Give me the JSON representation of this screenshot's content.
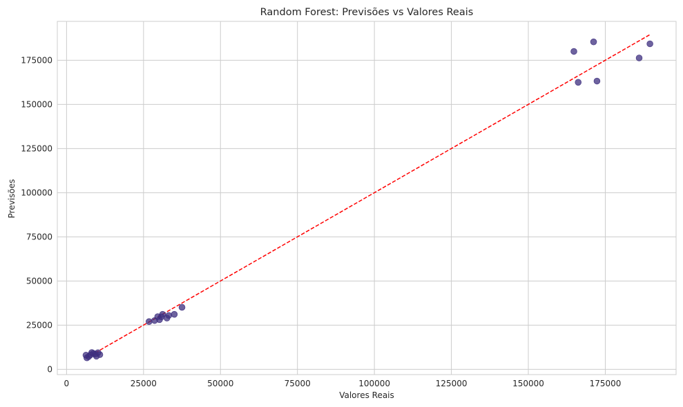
{
  "chart_data": {
    "type": "scatter",
    "title": "Random Forest: Previsões vs Valores Reais",
    "xlabel": "Valores Reais",
    "ylabel": "Previsões",
    "xlim": [
      -3000,
      198000
    ],
    "ylim": [
      -3000,
      197000
    ],
    "xticks": [
      0,
      25000,
      50000,
      75000,
      100000,
      125000,
      150000,
      175000
    ],
    "yticks": [
      0,
      25000,
      50000,
      75000,
      100000,
      125000,
      150000,
      175000
    ],
    "grid": true,
    "colors": {
      "points": "#3e2f7f",
      "reference_line": "#ff0000",
      "grid": "#cccccc",
      "frame": "#cccccc",
      "text": "#262626"
    },
    "reference_line": {
      "from": [
        6200,
        6200
      ],
      "to": [
        189500,
        189500
      ],
      "style": "dashed"
    },
    "points": [
      {
        "x": 6300,
        "y": 8000
      },
      {
        "x": 6600,
        "y": 6500
      },
      {
        "x": 7200,
        "y": 7200
      },
      {
        "x": 7800,
        "y": 8200
      },
      {
        "x": 8200,
        "y": 9500
      },
      {
        "x": 8700,
        "y": 9000
      },
      {
        "x": 9300,
        "y": 8600
      },
      {
        "x": 9700,
        "y": 7400
      },
      {
        "x": 10200,
        "y": 9400
      },
      {
        "x": 10800,
        "y": 8300
      },
      {
        "x": 26800,
        "y": 27000
      },
      {
        "x": 28600,
        "y": 27600
      },
      {
        "x": 29600,
        "y": 29800
      },
      {
        "x": 30200,
        "y": 28100
      },
      {
        "x": 30800,
        "y": 29700
      },
      {
        "x": 31200,
        "y": 31100
      },
      {
        "x": 32600,
        "y": 29000
      },
      {
        "x": 33200,
        "y": 30500
      },
      {
        "x": 35000,
        "y": 31100
      },
      {
        "x": 37500,
        "y": 35100
      },
      {
        "x": 164800,
        "y": 180000
      },
      {
        "x": 166200,
        "y": 162500
      },
      {
        "x": 171200,
        "y": 185400
      },
      {
        "x": 172300,
        "y": 163200
      },
      {
        "x": 186000,
        "y": 176300
      },
      {
        "x": 189500,
        "y": 184300
      }
    ]
  }
}
